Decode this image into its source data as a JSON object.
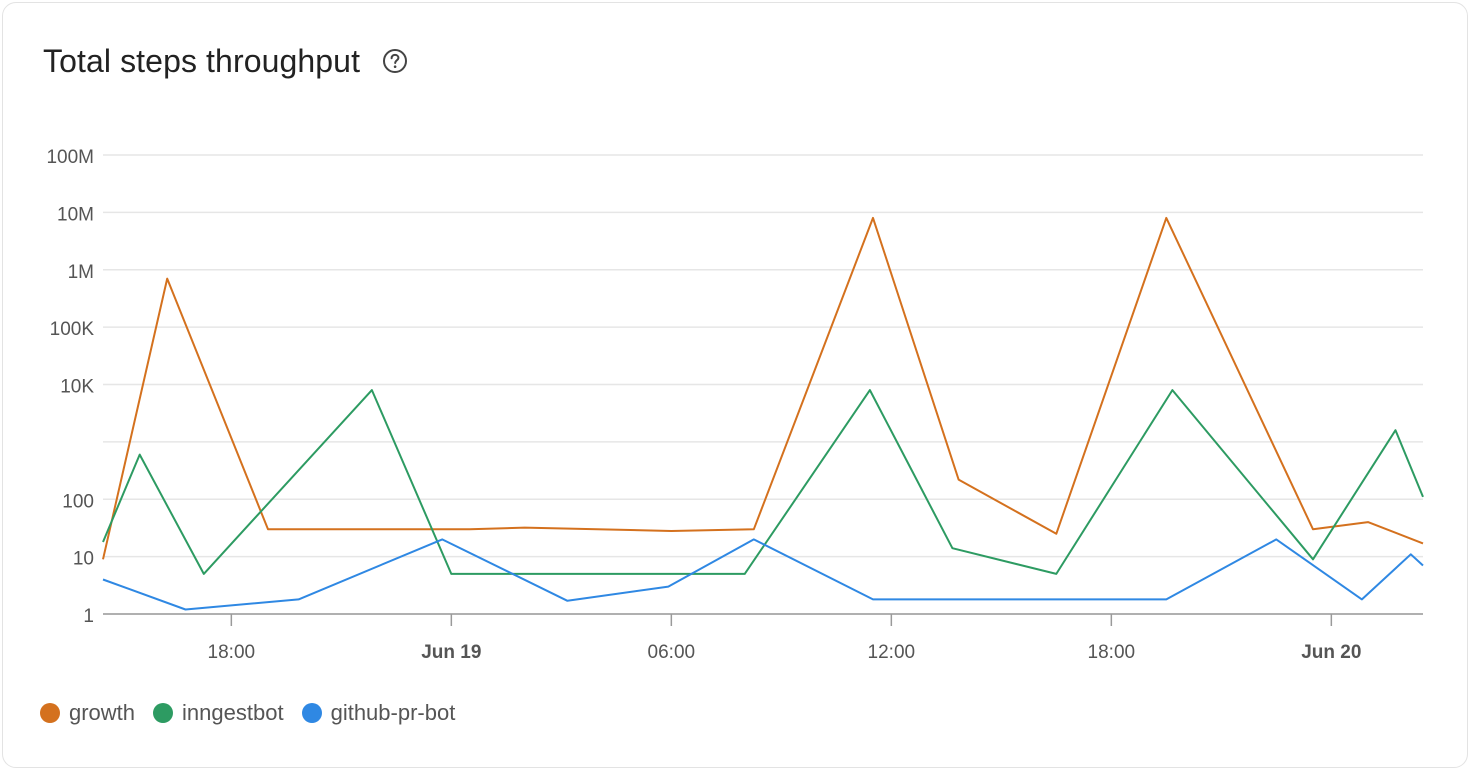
{
  "header": {
    "title": "Total steps throughput",
    "help_icon": "question-circle-icon"
  },
  "chart_data": {
    "type": "line",
    "title": "Total steps throughput",
    "yscale": "log",
    "ylim": [
      1,
      100000000
    ],
    "y_ticks": [
      {
        "value": 1,
        "label": "1"
      },
      {
        "value": 10,
        "label": "10"
      },
      {
        "value": 100,
        "label": "100"
      },
      {
        "value": 10000,
        "label": "10K"
      },
      {
        "value": 100000,
        "label": "100K"
      },
      {
        "value": 1000000,
        "label": "1M"
      },
      {
        "value": 10000000,
        "label": "10M"
      },
      {
        "value": 100000000,
        "label": "100M"
      }
    ],
    "xlim": [
      "Jun 18 14:30",
      "Jun 20 02:30"
    ],
    "x_ticks": [
      {
        "value": "Jun 18 18:00",
        "label": "18:00",
        "bold": false
      },
      {
        "value": "Jun 19 00:00",
        "label": "Jun 19",
        "bold": true
      },
      {
        "value": "Jun 19 06:00",
        "label": "06:00",
        "bold": false
      },
      {
        "value": "Jun 19 12:00",
        "label": "12:00",
        "bold": false
      },
      {
        "value": "Jun 19 18:00",
        "label": "18:00",
        "bold": false
      },
      {
        "value": "Jun 20 00:00",
        "label": "Jun 20",
        "bold": true
      }
    ],
    "grid": true,
    "legend_position": "bottom-left",
    "series": [
      {
        "name": "growth",
        "color": "#d4711e",
        "points": [
          [
            "Jun 18 14:30",
            9
          ],
          [
            "Jun 18 16:15",
            700000
          ],
          [
            "Jun 18 19:00",
            30
          ],
          [
            "Jun 19 00:30",
            30
          ],
          [
            "Jun 19 02:00",
            32
          ],
          [
            "Jun 19 06:00",
            28
          ],
          [
            "Jun 19 08:15",
            30
          ],
          [
            "Jun 19 11:30",
            8000000
          ],
          [
            "Jun 19 13:50",
            220
          ],
          [
            "Jun 19 16:30",
            25
          ],
          [
            "Jun 19 19:30",
            8000000
          ],
          [
            "Jun 19 23:30",
            30
          ],
          [
            "Jun 20 01:00",
            40
          ],
          [
            "Jun 20 02:30",
            17
          ]
        ]
      },
      {
        "name": "inngestbot",
        "color": "#2d9b62",
        "points": [
          [
            "Jun 18 14:30",
            18
          ],
          [
            "Jun 18 15:30",
            600
          ],
          [
            "Jun 18 17:15",
            5
          ],
          [
            "Jun 18 21:50",
            8000
          ],
          [
            "Jun 19 00:00",
            5
          ],
          [
            "Jun 19 06:00",
            5
          ],
          [
            "Jun 19 08:00",
            5
          ],
          [
            "Jun 19 11:25",
            8000
          ],
          [
            "Jun 19 13:40",
            14
          ],
          [
            "Jun 19 16:30",
            5
          ],
          [
            "Jun 19 19:40",
            8000
          ],
          [
            "Jun 19 23:30",
            9
          ],
          [
            "Jun 20 01:45",
            1600
          ],
          [
            "Jun 20 02:30",
            110
          ]
        ]
      },
      {
        "name": "github-pr-bot",
        "color": "#2f88e3",
        "points": [
          [
            "Jun 18 14:30",
            4
          ],
          [
            "Jun 18 16:45",
            1.2
          ],
          [
            "Jun 18 19:50",
            1.8
          ],
          [
            "Jun 18 23:45",
            20
          ],
          [
            "Jun 19 03:10",
            1.7
          ],
          [
            "Jun 19 05:55",
            3
          ],
          [
            "Jun 19 08:15",
            20
          ],
          [
            "Jun 19 11:30",
            1.8
          ],
          [
            "Jun 19 14:30",
            1.8
          ],
          [
            "Jun 19 17:30",
            1.8
          ],
          [
            "Jun 19 19:30",
            1.8
          ],
          [
            "Jun 19 22:30",
            20
          ],
          [
            "Jun 20 00:50",
            1.8
          ],
          [
            "Jun 20 02:10",
            11
          ],
          [
            "Jun 20 02:30",
            7
          ]
        ]
      }
    ]
  },
  "legend": {
    "items": [
      {
        "label": "growth",
        "color": "#d4711e"
      },
      {
        "label": "inngestbot",
        "color": "#2d9b62"
      },
      {
        "label": "github-pr-bot",
        "color": "#2f88e3"
      }
    ]
  }
}
